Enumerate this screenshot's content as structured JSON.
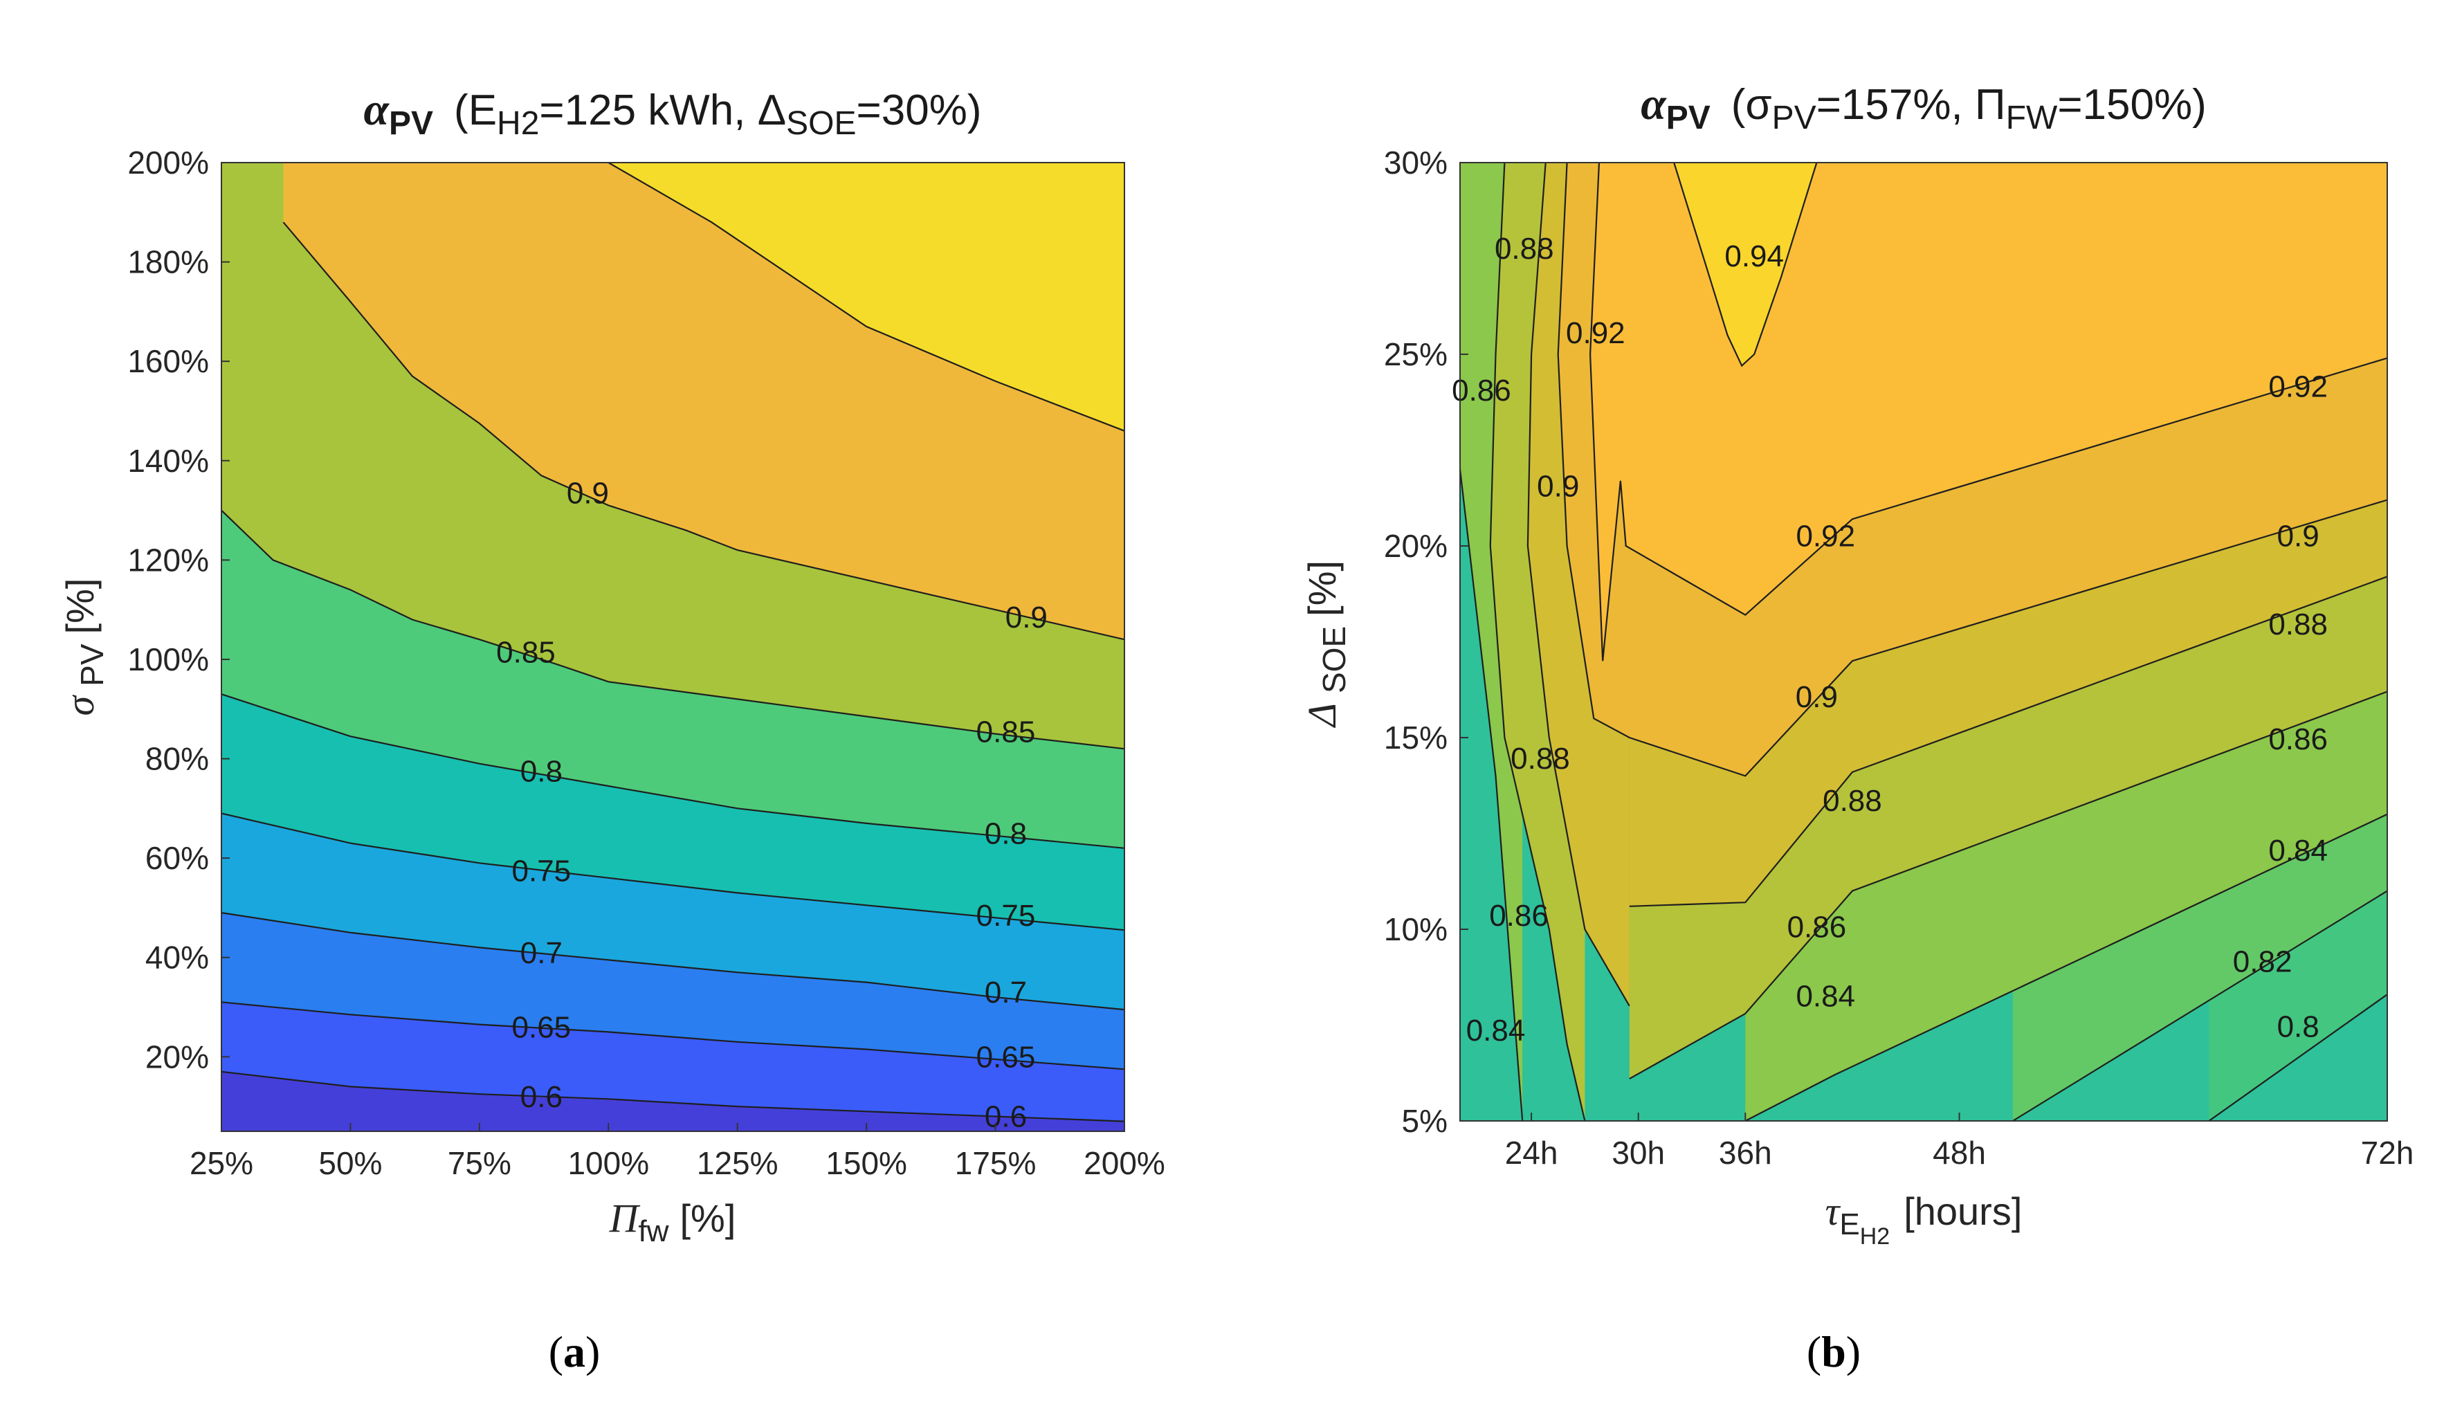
{
  "chart_data": [
    {
      "panel": "(a)",
      "type": "contour",
      "title": {
        "symbol": "α",
        "symbol_sub": "PV",
        "text": "(E_H2=125 kWh, Δ_SOE=30%)",
        "parts": [
          {
            "t": "(E"
          },
          {
            "t": "H2",
            "sub": true
          },
          {
            "t": "=125 kWh, Δ"
          },
          {
            "t": "SOE",
            "sub": true
          },
          {
            "t": "=30%)"
          }
        ]
      },
      "xlabel": {
        "symbol": "Π",
        "sub": "fw",
        "text": "[%]"
      },
      "ylabel": {
        "symbol": "σ",
        "sub": "PV",
        "text": "[%]"
      },
      "x_ticks": [
        "25%",
        "50%",
        "75%",
        "100%",
        "125%",
        "150%",
        "175%",
        "200%"
      ],
      "x_tick_values": [
        25,
        50,
        75,
        100,
        125,
        150,
        175,
        200
      ],
      "y_ticks": [
        "20%",
        "40%",
        "60%",
        "80%",
        "100%",
        "120%",
        "140%",
        "160%",
        "180%",
        "200%"
      ],
      "y_tick_values": [
        20,
        40,
        60,
        80,
        100,
        120,
        140,
        160,
        180,
        200
      ],
      "xlim": [
        25,
        200
      ],
      "ylim": [
        5,
        200
      ],
      "contour_levels": [
        0.6,
        0.65,
        0.7,
        0.75,
        0.8,
        0.85,
        0.9,
        0.95
      ],
      "contours": [
        {
          "level": 0.6,
          "points": [
            [
              25,
              17
            ],
            [
              50,
              14
            ],
            [
              75,
              12.5
            ],
            [
              100,
              11.5
            ],
            [
              125,
              10
            ],
            [
              150,
              9
            ],
            [
              175,
              8
            ],
            [
              200,
              7
            ]
          ],
          "labels": [
            {
              "text": "0.6",
              "x": 87,
              "y": 11.5
            },
            {
              "text": "0.6",
              "x": 177,
              "y": 7.5
            }
          ]
        },
        {
          "level": 0.65,
          "points": [
            [
              25,
              31
            ],
            [
              50,
              28.5
            ],
            [
              75,
              26.5
            ],
            [
              100,
              25
            ],
            [
              125,
              23
            ],
            [
              150,
              21.5
            ],
            [
              175,
              19.5
            ],
            [
              200,
              17.5
            ]
          ],
          "labels": [
            {
              "text": "0.65",
              "x": 87,
              "y": 25.5
            },
            {
              "text": "0.65",
              "x": 177,
              "y": 19.5
            }
          ]
        },
        {
          "level": 0.7,
          "points": [
            [
              25,
              49
            ],
            [
              50,
              45
            ],
            [
              75,
              42
            ],
            [
              100,
              39.5
            ],
            [
              125,
              37
            ],
            [
              150,
              35
            ],
            [
              175,
              32
            ],
            [
              200,
              29.5
            ]
          ],
          "labels": [
            {
              "text": "0.7",
              "x": 87,
              "y": 40.5
            },
            {
              "text": "0.7",
              "x": 177,
              "y": 32.5
            }
          ]
        },
        {
          "level": 0.75,
          "points": [
            [
              25,
              69
            ],
            [
              50,
              63
            ],
            [
              75,
              59
            ],
            [
              100,
              56
            ],
            [
              125,
              53
            ],
            [
              150,
              50.5
            ],
            [
              175,
              48
            ],
            [
              200,
              45.5
            ]
          ],
          "labels": [
            {
              "text": "0.75",
              "x": 87,
              "y": 57
            },
            {
              "text": "0.75",
              "x": 177,
              "y": 48
            }
          ]
        },
        {
          "level": 0.8,
          "points": [
            [
              25,
              93
            ],
            [
              50,
              84.5
            ],
            [
              75,
              79
            ],
            [
              100,
              74.5
            ],
            [
              125,
              70
            ],
            [
              150,
              67
            ],
            [
              175,
              64.5
            ],
            [
              200,
              62
            ]
          ],
          "labels": [
            {
              "text": "0.8",
              "x": 87,
              "y": 77
            },
            {
              "text": "0.8",
              "x": 177,
              "y": 64.5
            }
          ]
        },
        {
          "level": 0.85,
          "points": [
            [
              25,
              130
            ],
            [
              35,
              120
            ],
            [
              50,
              114
            ],
            [
              62,
              108
            ],
            [
              75,
              104
            ],
            [
              90,
              99
            ],
            [
              100,
              95.5
            ],
            [
              125,
              92
            ],
            [
              150,
              88.5
            ],
            [
              175,
              85
            ],
            [
              200,
              82
            ]
          ],
          "labels": [
            {
              "text": "0.85",
              "x": 84,
              "y": 101
            },
            {
              "text": "0.85",
              "x": 177,
              "y": 85
            }
          ]
        },
        {
          "level": 0.9,
          "points": [
            [
              37,
              188
            ],
            [
              50,
              172
            ],
            [
              62,
              157
            ],
            [
              75,
              147.5
            ],
            [
              87,
              137
            ],
            [
              100,
              131
            ],
            [
              115,
              126
            ],
            [
              125,
              122
            ],
            [
              150,
              116
            ],
            [
              175,
              110
            ],
            [
              200,
              104
            ]
          ],
          "labels": [
            {
              "text": "0.9",
              "x": 96,
              "y": 133
            },
            {
              "text": "0.9",
              "x": 181,
              "y": 108
            }
          ]
        },
        {
          "level": 0.95,
          "points": [
            [
              100,
              200
            ],
            [
              120,
              188
            ],
            [
              150,
              167
            ],
            [
              175,
              156
            ],
            [
              200,
              146
            ]
          ],
          "labels": []
        }
      ],
      "bands": [
        {
          "min": null,
          "max": 0.6,
          "color": "#453fd9"
        },
        {
          "min": 0.6,
          "max": 0.65,
          "color": "#3b5cf8"
        },
        {
          "min": 0.65,
          "max": 0.7,
          "color": "#2a7ef0"
        },
        {
          "min": 0.7,
          "max": 0.75,
          "color": "#1aa7dd"
        },
        {
          "min": 0.75,
          "max": 0.8,
          "color": "#17bfb0"
        },
        {
          "min": 0.8,
          "max": 0.85,
          "color": "#4dcb7a"
        },
        {
          "min": 0.85,
          "max": 0.9,
          "color": "#a8c43c"
        },
        {
          "min": 0.9,
          "max": 0.95,
          "color": "#f0b83a"
        },
        {
          "min": 0.95,
          "max": null,
          "color": "#f5dc2a"
        }
      ]
    },
    {
      "panel": "(b)",
      "type": "contour",
      "title": {
        "symbol": "α",
        "symbol_sub": "PV",
        "text": "(σ_PV=157%, Π_FW=150%)",
        "parts": [
          {
            "t": "(σ"
          },
          {
            "t": "PV",
            "sub": true
          },
          {
            "t": "=157%, Π"
          },
          {
            "t": "FW",
            "sub": true
          },
          {
            "t": "=150%)"
          }
        ]
      },
      "xlabel": {
        "symbol": "τ",
        "sub": "E",
        "subsub": "H2",
        "text": "[hours]"
      },
      "ylabel": {
        "symbol": "Δ",
        "sub": "SOE",
        "text": "[%]"
      },
      "x_ticks": [
        "24h",
        "30h",
        "36h",
        "48h",
        "72h"
      ],
      "x_tick_values": [
        24,
        30,
        36,
        48,
        72
      ],
      "y_ticks": [
        "5%",
        "10%",
        "15%",
        "20%",
        "25%",
        "30%"
      ],
      "y_tick_values": [
        5,
        10,
        15,
        20,
        25,
        30
      ],
      "xlim": [
        20,
        72
      ],
      "ylim": [
        5,
        30
      ],
      "contour_levels": [
        0.8,
        0.82,
        0.84,
        0.86,
        0.88,
        0.9,
        0.92,
        0.94
      ],
      "contours": [
        {
          "level": 0.8,
          "points": [
            [
              62,
              5
            ],
            [
              72,
              8.3
            ]
          ],
          "labels": [
            {
              "text": "0.8",
              "x": 67,
              "y": 7.4
            }
          ]
        },
        {
          "level": 0.82,
          "points": [
            [
              51,
              5
            ],
            [
              72,
              11
            ]
          ],
          "labels": [
            {
              "text": "0.82",
              "x": 65,
              "y": 9.1
            }
          ]
        },
        {
          "level": 0.84,
          "points": [
            [
              23.5,
              5
            ],
            [
              22,
              14
            ],
            [
              20,
              22
            ]
          ],
          "labels": [
            {
              "text": "0.84",
              "x": 22,
              "y": 7.3
            }
          ]
        },
        {
          "level": 0.84,
          "points": [
            [
              36,
              5
            ],
            [
              41,
              6.2
            ],
            [
              72,
              13
            ]
          ],
          "labels": [
            {
              "text": "0.84",
              "x": 40.5,
              "y": 8.2
            },
            {
              "text": "0.84",
              "x": 67,
              "y": 12
            }
          ]
        },
        {
          "level": 0.86,
          "points": [
            [
              22.5,
              30
            ],
            [
              22,
              25
            ],
            [
              21.7,
              20
            ],
            [
              22.5,
              15
            ],
            [
              25,
              10
            ],
            [
              26,
              7
            ],
            [
              27,
              5
            ]
          ],
          "labels": [
            {
              "text": "0.86",
              "x": 21.2,
              "y": 24
            },
            {
              "text": "0.86",
              "x": 23.3,
              "y": 10.3
            }
          ]
        },
        {
          "level": 0.86,
          "points": [
            [
              29.5,
              6.1
            ],
            [
              36,
              7.8
            ],
            [
              42,
              11
            ],
            [
              72,
              16.2
            ]
          ],
          "labels": [
            {
              "text": "0.86",
              "x": 40,
              "y": 10
            },
            {
              "text": "0.86",
              "x": 67,
              "y": 14.9
            }
          ]
        },
        {
          "level": 0.88,
          "points": [
            [
              24.8,
              30
            ],
            [
              24,
              25
            ],
            [
              23.8,
              20
            ],
            [
              25,
              15
            ],
            [
              27,
              10
            ],
            [
              29.5,
              8
            ]
          ],
          "labels": [
            {
              "text": "0.88",
              "x": 23.6,
              "y": 27.7
            },
            {
              "text": "0.88",
              "x": 24.5,
              "y": 14.4
            }
          ]
        },
        {
          "level": 0.88,
          "points": [
            [
              29.5,
              10.6
            ],
            [
              36,
              10.7
            ],
            [
              42,
              14.1
            ],
            [
              72,
              19.2
            ]
          ],
          "labels": [
            {
              "text": "0.88",
              "x": 42,
              "y": 13.3
            },
            {
              "text": "0.88",
              "x": 67,
              "y": 17.9
            }
          ]
        },
        {
          "level": 0.9,
          "points": [
            [
              26,
              30
            ],
            [
              25.5,
              25
            ],
            [
              26,
              20
            ],
            [
              27.5,
              15.5
            ],
            [
              29.5,
              15
            ],
            [
              36,
              14
            ],
            [
              42,
              17
            ],
            [
              72,
              21.2
            ]
          ],
          "labels": [
            {
              "text": "0.9",
              "x": 25.5,
              "y": 21.5
            },
            {
              "text": "0.9",
              "x": 40,
              "y": 16
            },
            {
              "text": "0.9",
              "x": 67,
              "y": 20.2
            }
          ]
        },
        {
          "level": 0.92,
          "points": [
            [
              27.8,
              30
            ],
            [
              27.3,
              25
            ],
            [
              28,
              17
            ],
            [
              29,
              21.7
            ],
            [
              29.3,
              20
            ],
            [
              36,
              18.2
            ],
            [
              42,
              20.7
            ],
            [
              72,
              24.9
            ]
          ],
          "labels": [
            {
              "text": "0.92",
              "x": 27.6,
              "y": 25.5
            },
            {
              "text": "0.92",
              "x": 40.5,
              "y": 20.2
            },
            {
              "text": "0.92",
              "x": 67,
              "y": 24.1
            }
          ]
        },
        {
          "level": 0.94,
          "points": [
            [
              32,
              30
            ],
            [
              34,
              27
            ],
            [
              35,
              25.5
            ],
            [
              35.8,
              24.7
            ],
            [
              36.5,
              25
            ],
            [
              38,
              27
            ],
            [
              40,
              30
            ]
          ],
          "labels": [
            {
              "text": "0.94",
              "x": 36.5,
              "y": 27.5
            }
          ]
        }
      ],
      "bands": [
        {
          "min": null,
          "max": 0.8,
          "color": "#2ec19a"
        },
        {
          "min": 0.8,
          "max": 0.82,
          "color": "#43c680"
        },
        {
          "min": 0.82,
          "max": 0.84,
          "color": "#62c966"
        },
        {
          "min": 0.84,
          "max": 0.86,
          "color": "#8bc84b"
        },
        {
          "min": 0.86,
          "max": 0.88,
          "color": "#b4c33a"
        },
        {
          "min": 0.88,
          "max": 0.9,
          "color": "#d3bd33"
        },
        {
          "min": 0.9,
          "max": 0.92,
          "color": "#ecb836"
        },
        {
          "min": 0.92,
          "max": 0.94,
          "color": "#fbbd38"
        },
        {
          "min": 0.94,
          "max": null,
          "color": "#fad52c"
        }
      ]
    }
  ]
}
